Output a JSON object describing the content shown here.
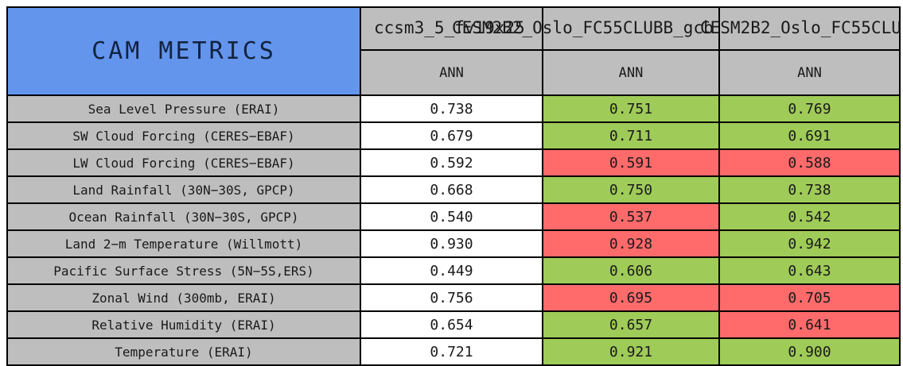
{
  "title": "CAM METRICS",
  "columns": [
    {
      "name": "ccsm3_5_fv19x25",
      "sub": "ANN"
    },
    {
      "name": "CESM2B2_Oslo_FC55CLUBB_gcb",
      "sub": "ANN"
    },
    {
      "name": "CESM2B2_Oslo_FC55CLUB",
      "sub": "ANN"
    }
  ],
  "rows": [
    {
      "label": "Sea Level Pressure (ERAI)",
      "values": [
        "0.738",
        "0.751",
        "0.769"
      ],
      "colors": [
        "white",
        "green",
        "green"
      ]
    },
    {
      "label": "SW Cloud Forcing (CERES−EBAF)",
      "values": [
        "0.679",
        "0.711",
        "0.691"
      ],
      "colors": [
        "white",
        "green",
        "green"
      ]
    },
    {
      "label": "LW Cloud Forcing (CERES−EBAF)",
      "values": [
        "0.592",
        "0.591",
        "0.588"
      ],
      "colors": [
        "white",
        "red",
        "red"
      ]
    },
    {
      "label": "Land Rainfall (30N−30S, GPCP)",
      "values": [
        "0.668",
        "0.750",
        "0.738"
      ],
      "colors": [
        "white",
        "green",
        "green"
      ]
    },
    {
      "label": "Ocean Rainfall (30N−30S, GPCP)",
      "values": [
        "0.540",
        "0.537",
        "0.542"
      ],
      "colors": [
        "white",
        "red",
        "green"
      ]
    },
    {
      "label": "Land 2−m Temperature (Willmott)",
      "values": [
        "0.930",
        "0.928",
        "0.942"
      ],
      "colors": [
        "white",
        "red",
        "green"
      ]
    },
    {
      "label": "Pacific Surface Stress (5N−5S,ERS)",
      "values": [
        "0.449",
        "0.606",
        "0.643"
      ],
      "colors": [
        "white",
        "green",
        "green"
      ]
    },
    {
      "label": "Zonal Wind (300mb, ERAI)",
      "values": [
        "0.756",
        "0.695",
        "0.705"
      ],
      "colors": [
        "white",
        "red",
        "red"
      ]
    },
    {
      "label": "Relative Humidity (ERAI)",
      "values": [
        "0.654",
        "0.657",
        "0.641"
      ],
      "colors": [
        "white",
        "green",
        "red"
      ]
    },
    {
      "label": "Temperature (ERAI)",
      "values": [
        "0.721",
        "0.921",
        "0.900"
      ],
      "colors": [
        "white",
        "green",
        "green"
      ]
    }
  ],
  "colors": {
    "blue": "#6495ED",
    "gray": "#BEBEBE",
    "green": "#9FCB58",
    "red": "#FF6B6B",
    "white": "#FFFFFF"
  },
  "chart_data": {
    "type": "table",
    "title": "CAM METRICS",
    "column_groups": [
      "ccsm3_5_fv19x25",
      "CESM2B2_Oslo_FC55CLUBB_gcb",
      "CESM2B2_Oslo_FC55CLUB"
    ],
    "subheaders": [
      "ANN",
      "ANN",
      "ANN"
    ],
    "row_labels": [
      "Sea Level Pressure (ERAI)",
      "SW Cloud Forcing (CERES-EBAF)",
      "LW Cloud Forcing (CERES-EBAF)",
      "Land Rainfall (30N-30S, GPCP)",
      "Ocean Rainfall (30N-30S, GPCP)",
      "Land 2-m Temperature (Willmott)",
      "Pacific Surface Stress (5N-5S,ERS)",
      "Zonal Wind (300mb, ERAI)",
      "Relative Humidity (ERAI)",
      "Temperature (ERAI)"
    ],
    "values": [
      [
        0.738,
        0.751,
        0.769
      ],
      [
        0.679,
        0.711,
        0.691
      ],
      [
        0.592,
        0.591,
        0.588
      ],
      [
        0.668,
        0.75,
        0.738
      ],
      [
        0.54,
        0.537,
        0.542
      ],
      [
        0.93,
        0.928,
        0.942
      ],
      [
        0.449,
        0.606,
        0.643
      ],
      [
        0.756,
        0.695,
        0.705
      ],
      [
        0.654,
        0.657,
        0.641
      ],
      [
        0.721,
        0.921,
        0.9
      ]
    ],
    "cell_highlight": [
      [
        "none",
        "green",
        "green"
      ],
      [
        "none",
        "green",
        "green"
      ],
      [
        "none",
        "red",
        "red"
      ],
      [
        "none",
        "green",
        "green"
      ],
      [
        "none",
        "red",
        "green"
      ],
      [
        "none",
        "red",
        "green"
      ],
      [
        "none",
        "green",
        "green"
      ],
      [
        "none",
        "red",
        "red"
      ],
      [
        "none",
        "green",
        "red"
      ],
      [
        "none",
        "green",
        "green"
      ]
    ]
  }
}
